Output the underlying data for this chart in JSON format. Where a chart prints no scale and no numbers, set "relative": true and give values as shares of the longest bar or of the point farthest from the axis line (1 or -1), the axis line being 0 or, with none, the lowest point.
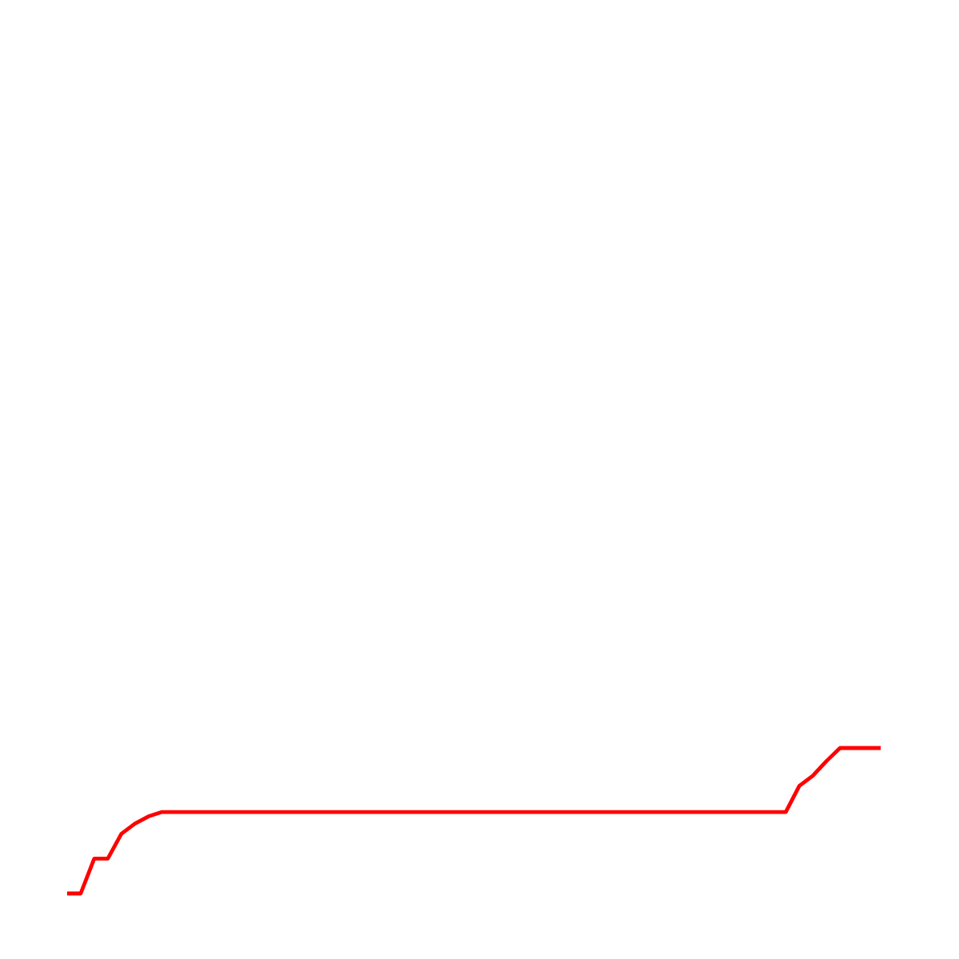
{
  "chart_data": {
    "type": "line",
    "relative": true,
    "color": "#ff0000",
    "categories": [
      null,
      null,
      null,
      null,
      null,
      null,
      null,
      null,
      null,
      null,
      null,
      null,
      null,
      null,
      null,
      null,
      null,
      null,
      null,
      null,
      null,
      null,
      null,
      null,
      null,
      null,
      null,
      null,
      null,
      null,
      null,
      null,
      null,
      null,
      null,
      null,
      null,
      null,
      null,
      null,
      null,
      null,
      null,
      null,
      null,
      null,
      null,
      null,
      null,
      null,
      null,
      null,
      null,
      null,
      null,
      null,
      null,
      null,
      null,
      null,
      null
    ],
    "values": [
      0,
      0,
      0.24,
      0.24,
      0.41,
      0.48,
      0.53,
      0.56,
      0.56,
      0.56,
      0.56,
      0.56,
      0.56,
      0.56,
      0.56,
      0.56,
      0.56,
      0.56,
      0.56,
      0.56,
      0.56,
      0.56,
      0.56,
      0.56,
      0.56,
      0.56,
      0.56,
      0.56,
      0.56,
      0.56,
      0.56,
      0.56,
      0.56,
      0.56,
      0.56,
      0.56,
      0.56,
      0.56,
      0.56,
      0.56,
      0.56,
      0.56,
      0.56,
      0.56,
      0.56,
      0.56,
      0.56,
      0.56,
      0.56,
      0.56,
      0.56,
      0.56,
      0.56,
      0.56,
      0.74,
      0.81,
      0.91,
      1,
      1,
      1,
      1
    ]
  }
}
